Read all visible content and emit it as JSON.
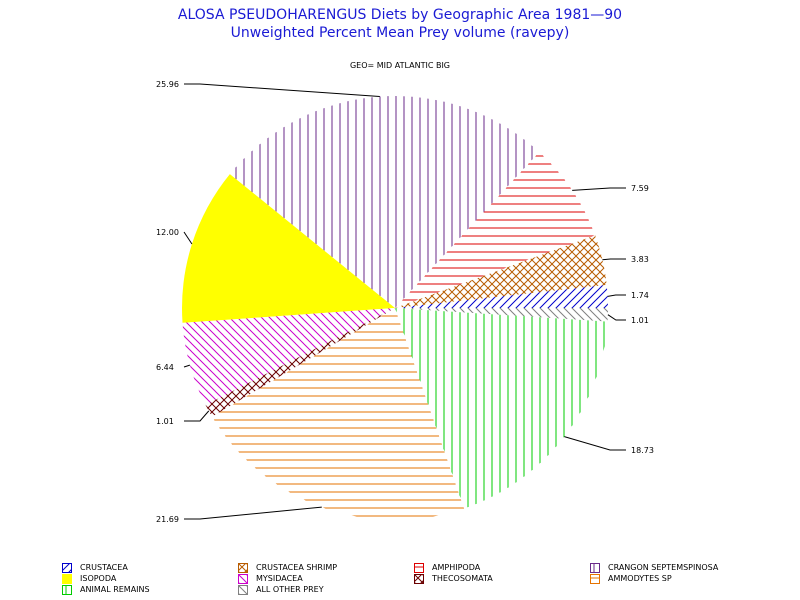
{
  "header": {
    "title_line1": "ALOSA PSEUDOHARENGUS Diets by Geographic Area 1981—90",
    "title_line2": "Unweighted Percent Mean Prey volume (ravepy)",
    "geo_label": "GEO= MID ATLANTIC BIG"
  },
  "chart_data": {
    "type": "pie",
    "title": "ALOSA PSEUDOHARENGUS Diets by Geographic Area 1981—90",
    "subtitle": "Unweighted Percent Mean Prey volume (ravepy)",
    "slices": [
      {
        "label": "CRUSTACEA",
        "value": 1.74,
        "value_label": "1.74",
        "color": "#0000cc",
        "pattern": "diag-up"
      },
      {
        "label": "CRUSTACEA SHRIMP",
        "value": 3.83,
        "value_label": "3.83",
        "color": "#b85c00",
        "pattern": "cross"
      },
      {
        "label": "AMPHIPODA",
        "value": 7.59,
        "value_label": "7.59",
        "color": "#dd0000",
        "pattern": "horizontal"
      },
      {
        "label": "CRANGON SEPTEMSPINOSA",
        "value": 25.96,
        "value_label": "25.96",
        "color": "#6a2a8a",
        "pattern": "vertical"
      },
      {
        "label": "ISOPODA",
        "value": 12.0,
        "value_label": "12.00",
        "color": "#ffff00",
        "pattern": "solid"
      },
      {
        "label": "MYSIDACEA",
        "value": 6.44,
        "value_label": "6.44",
        "color": "#cc00cc",
        "pattern": "diag-down"
      },
      {
        "label": "THECOSOMATA",
        "value": 1.01,
        "value_label": "1.01",
        "color": "#6a0000",
        "pattern": "cross"
      },
      {
        "label": "AMMODYTES SP",
        "value": 21.69,
        "value_label": "21.69",
        "color": "#e67300",
        "pattern": "horizontal"
      },
      {
        "label": "ANIMAL REMAINS",
        "value": 18.73,
        "value_label": "18.73",
        "color": "#00cc00",
        "pattern": "vertical"
      },
      {
        "label": "ALL OTHER PREY",
        "value": 1.01,
        "value_label": "1.01",
        "color": "#808080",
        "pattern": "diag-down"
      }
    ],
    "legend_position": "bottom"
  }
}
